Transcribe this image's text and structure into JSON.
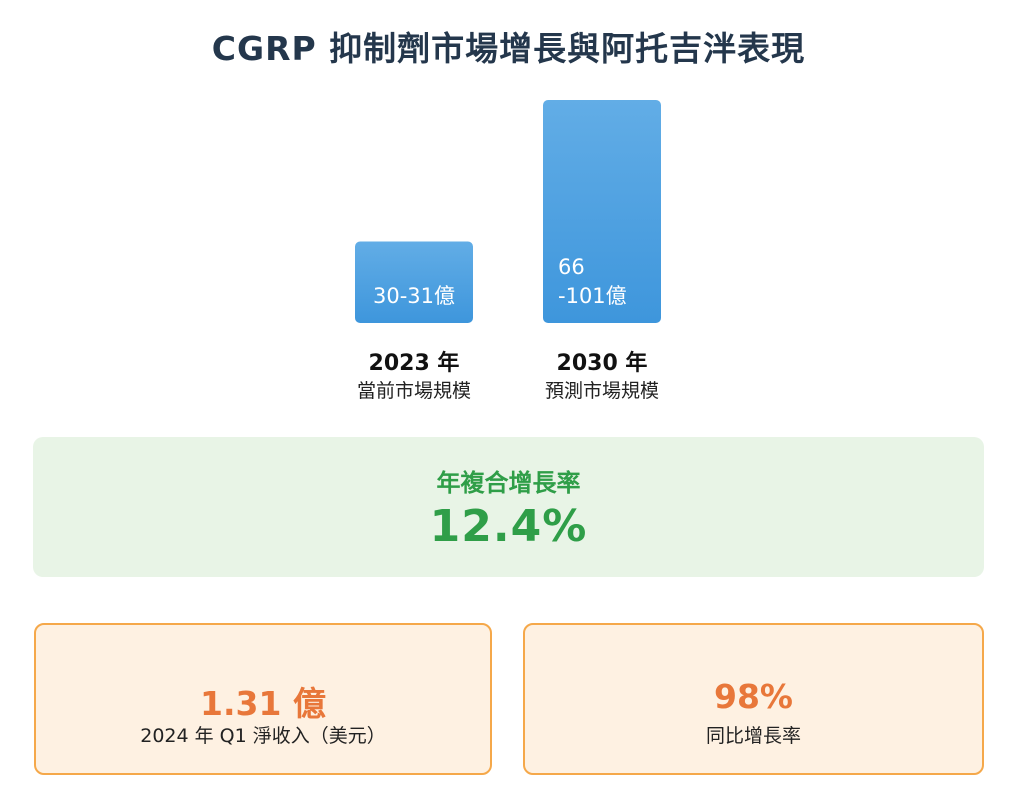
{
  "title": "CGRP 抑制劑市場增長與阿托吉泮表現",
  "chart_data": {
    "type": "bar",
    "title": "CGRP 抑制劑市場增長與阿托吉泮表現",
    "categories": [
      {
        "year": "2023 年",
        "sub": "當前市場規模"
      },
      {
        "year": "2030 年",
        "sub": "預測市場規模"
      }
    ],
    "values": [
      30.5,
      83.5
    ],
    "data_labels": [
      [
        "30-31億"
      ],
      [
        "66",
        "-101億"
      ]
    ],
    "bar_color": "#4a9fe0",
    "ylim": [
      0,
      88
    ],
    "grid": false
  },
  "cagr": {
    "label": "年複合增長率",
    "value": "12.4%",
    "color": "#2f9e48"
  },
  "stats": [
    {
      "value": "1.31 億",
      "label": "2024 年 Q1 淨收入（美元）"
    },
    {
      "value": "98%",
      "label": "同比增長率"
    }
  ],
  "colors": {
    "accent_orange": "#e8773a",
    "card_border": "#f5a84a",
    "card_bg": "#fef1e2",
    "cagr_bg": "#e8f4e6"
  }
}
